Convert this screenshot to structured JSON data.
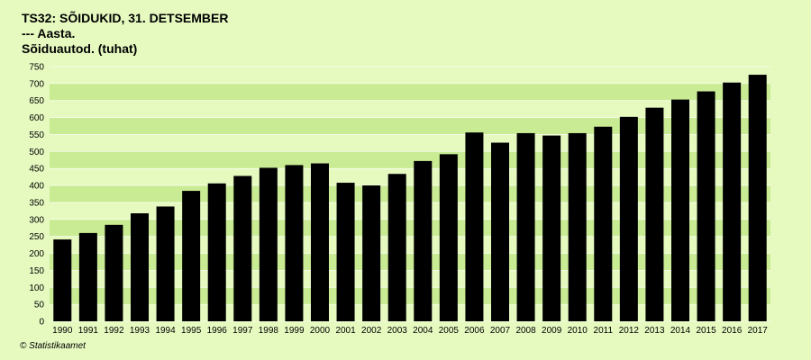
{
  "header": {
    "title": "TS32: SÕIDUKID, 31. DETSEMBER",
    "subtitle": "--- Aasta.",
    "measure": "Sõiduautod. (tuhat)"
  },
  "footer": {
    "credit": "© Statistikaamet"
  },
  "colors": {
    "background": "#e6fac0",
    "plot_band_light": "#e6fac0",
    "plot_band_dark": "#c9eb93",
    "bar": "#000000"
  },
  "chart_data": {
    "type": "bar",
    "title": "TS32: SÕIDUKID, 31. DETSEMBER",
    "xlabel": "",
    "ylabel": "",
    "ylim": [
      0,
      750
    ],
    "yticks": [
      0,
      50,
      100,
      150,
      200,
      250,
      300,
      350,
      400,
      450,
      500,
      550,
      600,
      650,
      700,
      750
    ],
    "grid": true,
    "legend": "none",
    "categories": [
      "1990",
      "1991",
      "1992",
      "1993",
      "1994",
      "1995",
      "1996",
      "1997",
      "1998",
      "1999",
      "2000",
      "2001",
      "2002",
      "2003",
      "2004",
      "2005",
      "2006",
      "2007",
      "2008",
      "2009",
      "2010",
      "2011",
      "2012",
      "2013",
      "2014",
      "2015",
      "2016",
      "2017"
    ],
    "values": [
      241,
      260,
      284,
      318,
      338,
      384,
      406,
      428,
      452,
      460,
      465,
      408,
      400,
      434,
      472,
      492,
      556,
      526,
      554,
      547,
      554,
      573,
      602,
      629,
      653,
      677,
      703,
      726
    ]
  }
}
